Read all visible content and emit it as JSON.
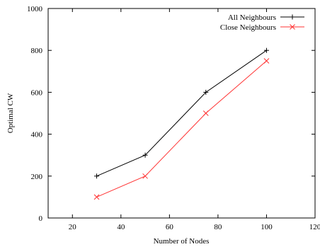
{
  "chart_data": {
    "type": "line",
    "title": "",
    "xlabel": "Number of Nodes",
    "ylabel": "Optimal CW",
    "xlim": [
      10,
      120
    ],
    "ylim": [
      0,
      1000
    ],
    "xticks": [
      20,
      40,
      60,
      80,
      100,
      120
    ],
    "yticks": [
      0,
      200,
      400,
      600,
      800,
      1000
    ],
    "grid": false,
    "legend_position": "top-right",
    "series": [
      {
        "name": "All Neighbours",
        "color": "#000000",
        "marker": "plus",
        "x": [
          30,
          50,
          75,
          100
        ],
        "y": [
          200,
          300,
          600,
          800
        ]
      },
      {
        "name": "Close Neighbours",
        "color": "#ff3333",
        "marker": "cross",
        "x": [
          30,
          50,
          75,
          100
        ],
        "y": [
          100,
          200,
          500,
          750
        ]
      }
    ]
  }
}
